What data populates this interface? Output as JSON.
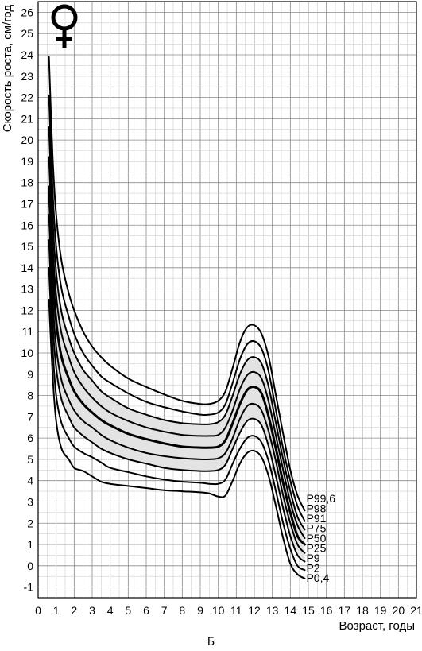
{
  "caption": "Б",
  "sex_symbol": "♀",
  "chart_data": {
    "type": "line",
    "xlabel": "Возраст, годы",
    "ylabel": "Скорость роста, см/год",
    "xlim": [
      0,
      21
    ],
    "ylim": [
      -1.5,
      26.5
    ],
    "grid": true,
    "x_ticks": [
      "0",
      "1",
      "2",
      "3",
      "4",
      "5",
      "6",
      "7",
      "8",
      "9",
      "10",
      "11",
      "12",
      "13",
      "14",
      "15",
      "16",
      "17",
      "18",
      "19",
      "20",
      "21"
    ],
    "y_ticks": [
      "-1",
      "0",
      "1",
      "2",
      "3",
      "4",
      "5",
      "6",
      "7",
      "8",
      "9",
      "10",
      "11",
      "12",
      "13",
      "14",
      "15",
      "16",
      "17",
      "18",
      "19",
      "20",
      "21",
      "22",
      "23",
      "24",
      "25",
      "26"
    ],
    "shaded_band": [
      "P9",
      "P91"
    ],
    "series": [
      {
        "name": "P0,4",
        "points": [
          [
            0.6,
            12.5
          ],
          [
            0.8,
            9
          ],
          [
            1,
            6.8
          ],
          [
            1.3,
            5.5
          ],
          [
            1.7,
            5
          ],
          [
            2,
            4.6
          ],
          [
            2.5,
            4.45
          ],
          [
            3,
            4.2
          ],
          [
            3.5,
            3.95
          ],
          [
            4,
            3.85
          ],
          [
            5,
            3.75
          ],
          [
            6,
            3.65
          ],
          [
            7,
            3.55
          ],
          [
            8,
            3.5
          ],
          [
            9,
            3.45
          ],
          [
            9.5,
            3.4
          ],
          [
            10,
            3.25
          ],
          [
            10.4,
            3.3
          ],
          [
            10.8,
            4
          ],
          [
            11.2,
            4.8
          ],
          [
            11.6,
            5.3
          ],
          [
            12,
            5.4
          ],
          [
            12.4,
            5.1
          ],
          [
            12.8,
            4.2
          ],
          [
            13.2,
            2.8
          ],
          [
            13.6,
            1.3
          ],
          [
            14,
            0.1
          ],
          [
            14.4,
            -0.4
          ],
          [
            14.8,
            -0.6
          ]
        ]
      },
      {
        "name": "P2",
        "points": [
          [
            0.6,
            14
          ],
          [
            0.8,
            10.3
          ],
          [
            1,
            8
          ],
          [
            1.3,
            6.7
          ],
          [
            1.7,
            6
          ],
          [
            2,
            5.6
          ],
          [
            2.5,
            5.3
          ],
          [
            3,
            5.1
          ],
          [
            3.5,
            4.85
          ],
          [
            4,
            4.6
          ],
          [
            5,
            4.4
          ],
          [
            6,
            4.2
          ],
          [
            7,
            4.05
          ],
          [
            8,
            3.95
          ],
          [
            9,
            3.9
          ],
          [
            9.5,
            3.85
          ],
          [
            10,
            3.85
          ],
          [
            10.4,
            4.05
          ],
          [
            10.8,
            4.8
          ],
          [
            11.2,
            5.5
          ],
          [
            11.6,
            6
          ],
          [
            12,
            6.1
          ],
          [
            12.4,
            5.8
          ],
          [
            12.8,
            4.9
          ],
          [
            13.2,
            3.5
          ],
          [
            13.6,
            2
          ],
          [
            14,
            0.8
          ],
          [
            14.4,
            0
          ],
          [
            14.8,
            -0.2
          ]
        ]
      },
      {
        "name": "P9",
        "points": [
          [
            0.6,
            15.3
          ],
          [
            0.8,
            11.5
          ],
          [
            1,
            9.3
          ],
          [
            1.3,
            7.8
          ],
          [
            1.7,
            7
          ],
          [
            2,
            6.5
          ],
          [
            2.5,
            6.1
          ],
          [
            3,
            5.8
          ],
          [
            3.5,
            5.5
          ],
          [
            4,
            5.3
          ],
          [
            5,
            5
          ],
          [
            6,
            4.8
          ],
          [
            7,
            4.6
          ],
          [
            8,
            4.5
          ],
          [
            9,
            4.45
          ],
          [
            9.5,
            4.45
          ],
          [
            10,
            4.5
          ],
          [
            10.4,
            4.75
          ],
          [
            10.8,
            5.5
          ],
          [
            11.2,
            6.25
          ],
          [
            11.6,
            6.8
          ],
          [
            12,
            6.9
          ],
          [
            12.4,
            6.6
          ],
          [
            12.8,
            5.6
          ],
          [
            13.2,
            4.2
          ],
          [
            13.6,
            2.7
          ],
          [
            14,
            1.4
          ],
          [
            14.4,
            0.5
          ],
          [
            14.8,
            0.2
          ]
        ]
      },
      {
        "name": "P25",
        "points": [
          [
            0.6,
            16.5
          ],
          [
            0.8,
            12.6
          ],
          [
            1,
            10.3
          ],
          [
            1.3,
            8.7
          ],
          [
            1.7,
            7.8
          ],
          [
            2,
            7.3
          ],
          [
            2.5,
            6.8
          ],
          [
            3,
            6.5
          ],
          [
            3.5,
            6.15
          ],
          [
            4,
            5.9
          ],
          [
            5,
            5.55
          ],
          [
            6,
            5.3
          ],
          [
            7,
            5.15
          ],
          [
            8,
            5.05
          ],
          [
            9,
            5
          ],
          [
            9.5,
            5
          ],
          [
            10,
            5.05
          ],
          [
            10.4,
            5.3
          ],
          [
            10.8,
            6
          ],
          [
            11.2,
            6.9
          ],
          [
            11.6,
            7.5
          ],
          [
            12,
            7.6
          ],
          [
            12.4,
            7.3
          ],
          [
            12.8,
            6.3
          ],
          [
            13.2,
            4.9
          ],
          [
            13.6,
            3.3
          ],
          [
            14,
            2
          ],
          [
            14.4,
            1
          ],
          [
            14.8,
            0.6
          ]
        ]
      },
      {
        "name": "P50",
        "points": [
          [
            0.6,
            17.8
          ],
          [
            0.8,
            14
          ],
          [
            1,
            11.5
          ],
          [
            1.3,
            9.8
          ],
          [
            1.7,
            8.8
          ],
          [
            2,
            8.2
          ],
          [
            2.5,
            7.6
          ],
          [
            3,
            7.2
          ],
          [
            3.5,
            6.85
          ],
          [
            4,
            6.6
          ],
          [
            5,
            6.2
          ],
          [
            6,
            5.95
          ],
          [
            7,
            5.75
          ],
          [
            8,
            5.6
          ],
          [
            9,
            5.55
          ],
          [
            9.5,
            5.55
          ],
          [
            10,
            5.6
          ],
          [
            10.4,
            5.9
          ],
          [
            10.8,
            6.7
          ],
          [
            11.2,
            7.6
          ],
          [
            11.6,
            8.25
          ],
          [
            12,
            8.4
          ],
          [
            12.4,
            8.1
          ],
          [
            12.8,
            7
          ],
          [
            13.2,
            5.5
          ],
          [
            13.6,
            3.9
          ],
          [
            14,
            2.5
          ],
          [
            14.4,
            1.4
          ],
          [
            14.8,
            1
          ]
        ]
      },
      {
        "name": "P75",
        "points": [
          [
            0.6,
            19.2
          ],
          [
            0.8,
            15.2
          ],
          [
            1,
            12.7
          ],
          [
            1.3,
            10.9
          ],
          [
            1.7,
            9.8
          ],
          [
            2,
            9.1
          ],
          [
            2.5,
            8.4
          ],
          [
            3,
            7.9
          ],
          [
            3.5,
            7.5
          ],
          [
            4,
            7.2
          ],
          [
            5,
            6.8
          ],
          [
            6,
            6.5
          ],
          [
            7,
            6.3
          ],
          [
            8,
            6.15
          ],
          [
            9,
            6.1
          ],
          [
            9.5,
            6.1
          ],
          [
            10,
            6.15
          ],
          [
            10.4,
            6.5
          ],
          [
            10.8,
            7.3
          ],
          [
            11.2,
            8.3
          ],
          [
            11.6,
            8.95
          ],
          [
            12,
            9.1
          ],
          [
            12.4,
            8.8
          ],
          [
            12.8,
            7.7
          ],
          [
            13.2,
            6.1
          ],
          [
            13.6,
            4.5
          ],
          [
            14,
            3
          ],
          [
            14.4,
            1.9
          ],
          [
            14.8,
            1.3
          ]
        ]
      },
      {
        "name": "P91",
        "points": [
          [
            0.6,
            20.6
          ],
          [
            0.8,
            16.4
          ],
          [
            1,
            13.8
          ],
          [
            1.3,
            11.9
          ],
          [
            1.7,
            10.7
          ],
          [
            2,
            10
          ],
          [
            2.5,
            9.2
          ],
          [
            3,
            8.7
          ],
          [
            3.5,
            8.2
          ],
          [
            4,
            7.9
          ],
          [
            5,
            7.4
          ],
          [
            6,
            7.1
          ],
          [
            7,
            6.85
          ],
          [
            8,
            6.7
          ],
          [
            9,
            6.65
          ],
          [
            9.5,
            6.65
          ],
          [
            10,
            6.75
          ],
          [
            10.4,
            7.1
          ],
          [
            10.8,
            8
          ],
          [
            11.2,
            9
          ],
          [
            11.6,
            9.65
          ],
          [
            12,
            9.8
          ],
          [
            12.4,
            9.5
          ],
          [
            12.8,
            8.4
          ],
          [
            13.2,
            6.7
          ],
          [
            13.6,
            5
          ],
          [
            14,
            3.5
          ],
          [
            14.4,
            2.3
          ],
          [
            14.8,
            1.7
          ]
        ]
      },
      {
        "name": "P98",
        "points": [
          [
            0.6,
            22.1
          ],
          [
            0.8,
            17.7
          ],
          [
            1,
            15
          ],
          [
            1.3,
            13
          ],
          [
            1.7,
            11.7
          ],
          [
            2,
            10.9
          ],
          [
            2.5,
            10
          ],
          [
            3,
            9.4
          ],
          [
            3.5,
            8.9
          ],
          [
            4,
            8.6
          ],
          [
            5,
            8.1
          ],
          [
            6,
            7.7
          ],
          [
            7,
            7.45
          ],
          [
            8,
            7.25
          ],
          [
            9,
            7.1
          ],
          [
            9.5,
            7.1
          ],
          [
            10,
            7.2
          ],
          [
            10.4,
            7.6
          ],
          [
            10.8,
            8.6
          ],
          [
            11.2,
            9.7
          ],
          [
            11.6,
            10.4
          ],
          [
            12,
            10.55
          ],
          [
            12.4,
            10.2
          ],
          [
            12.8,
            9.1
          ],
          [
            13.2,
            7.3
          ],
          [
            13.6,
            5.5
          ],
          [
            14,
            4
          ],
          [
            14.4,
            2.8
          ],
          [
            14.8,
            2.1
          ]
        ]
      },
      {
        "name": "P99,6",
        "points": [
          [
            0.6,
            23.9
          ],
          [
            0.8,
            19.3
          ],
          [
            1,
            16.5
          ],
          [
            1.3,
            14.3
          ],
          [
            1.7,
            12.8
          ],
          [
            2,
            12
          ],
          [
            2.5,
            11
          ],
          [
            3,
            10.3
          ],
          [
            3.5,
            9.8
          ],
          [
            4,
            9.4
          ],
          [
            5,
            8.8
          ],
          [
            6,
            8.4
          ],
          [
            7,
            8.05
          ],
          [
            8,
            7.75
          ],
          [
            9,
            7.6
          ],
          [
            9.5,
            7.6
          ],
          [
            10,
            7.75
          ],
          [
            10.4,
            8.2
          ],
          [
            10.8,
            9.3
          ],
          [
            11.2,
            10.5
          ],
          [
            11.6,
            11.2
          ],
          [
            12,
            11.3
          ],
          [
            12.4,
            10.9
          ],
          [
            12.8,
            9.8
          ],
          [
            13.2,
            8
          ],
          [
            13.6,
            6.2
          ],
          [
            14,
            4.5
          ],
          [
            14.4,
            3.3
          ],
          [
            14.8,
            2.6
          ]
        ]
      }
    ]
  }
}
